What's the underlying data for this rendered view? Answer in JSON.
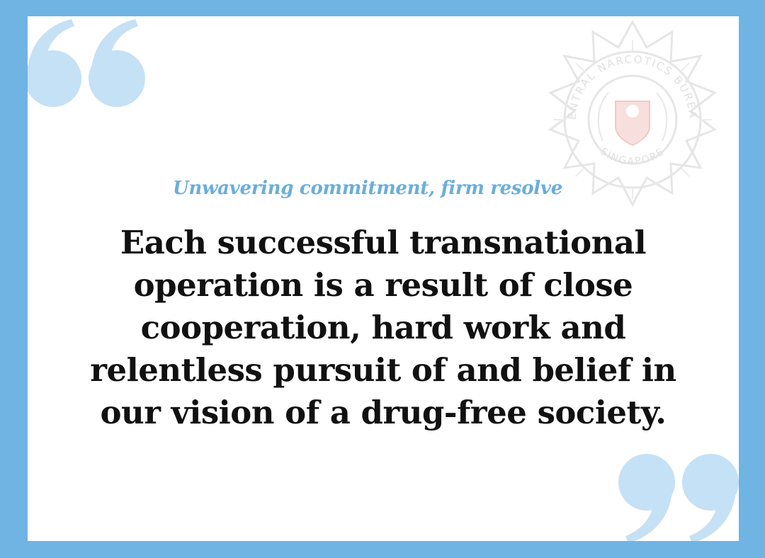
{
  "subtitle": "Unwavering commitment, firm resolve",
  "quote_lines": [
    "Each successful transnational",
    "operation is a result of close",
    "cooperation, hard work and",
    "relentless pursuit of and belief in",
    "our vision of a drug-free society."
  ],
  "emblem": {
    "ring_text_top": "CENTRAL NARCOTICS BUREAU",
    "ring_text_bottom": "SINGAPORE",
    "icon": "cnb-badge-icon"
  },
  "icons": {
    "open_quote": "open-quote-icon",
    "close_quote": "close-quote-icon"
  },
  "colors": {
    "border": "#6fb4e3",
    "background": "#ffffff",
    "quote_marks": "#c5e1f5",
    "subtitle": "#6aaedb",
    "text": "#111111",
    "emblem": "#e4e4e4",
    "emblem_accent": "#f2c4c0"
  }
}
